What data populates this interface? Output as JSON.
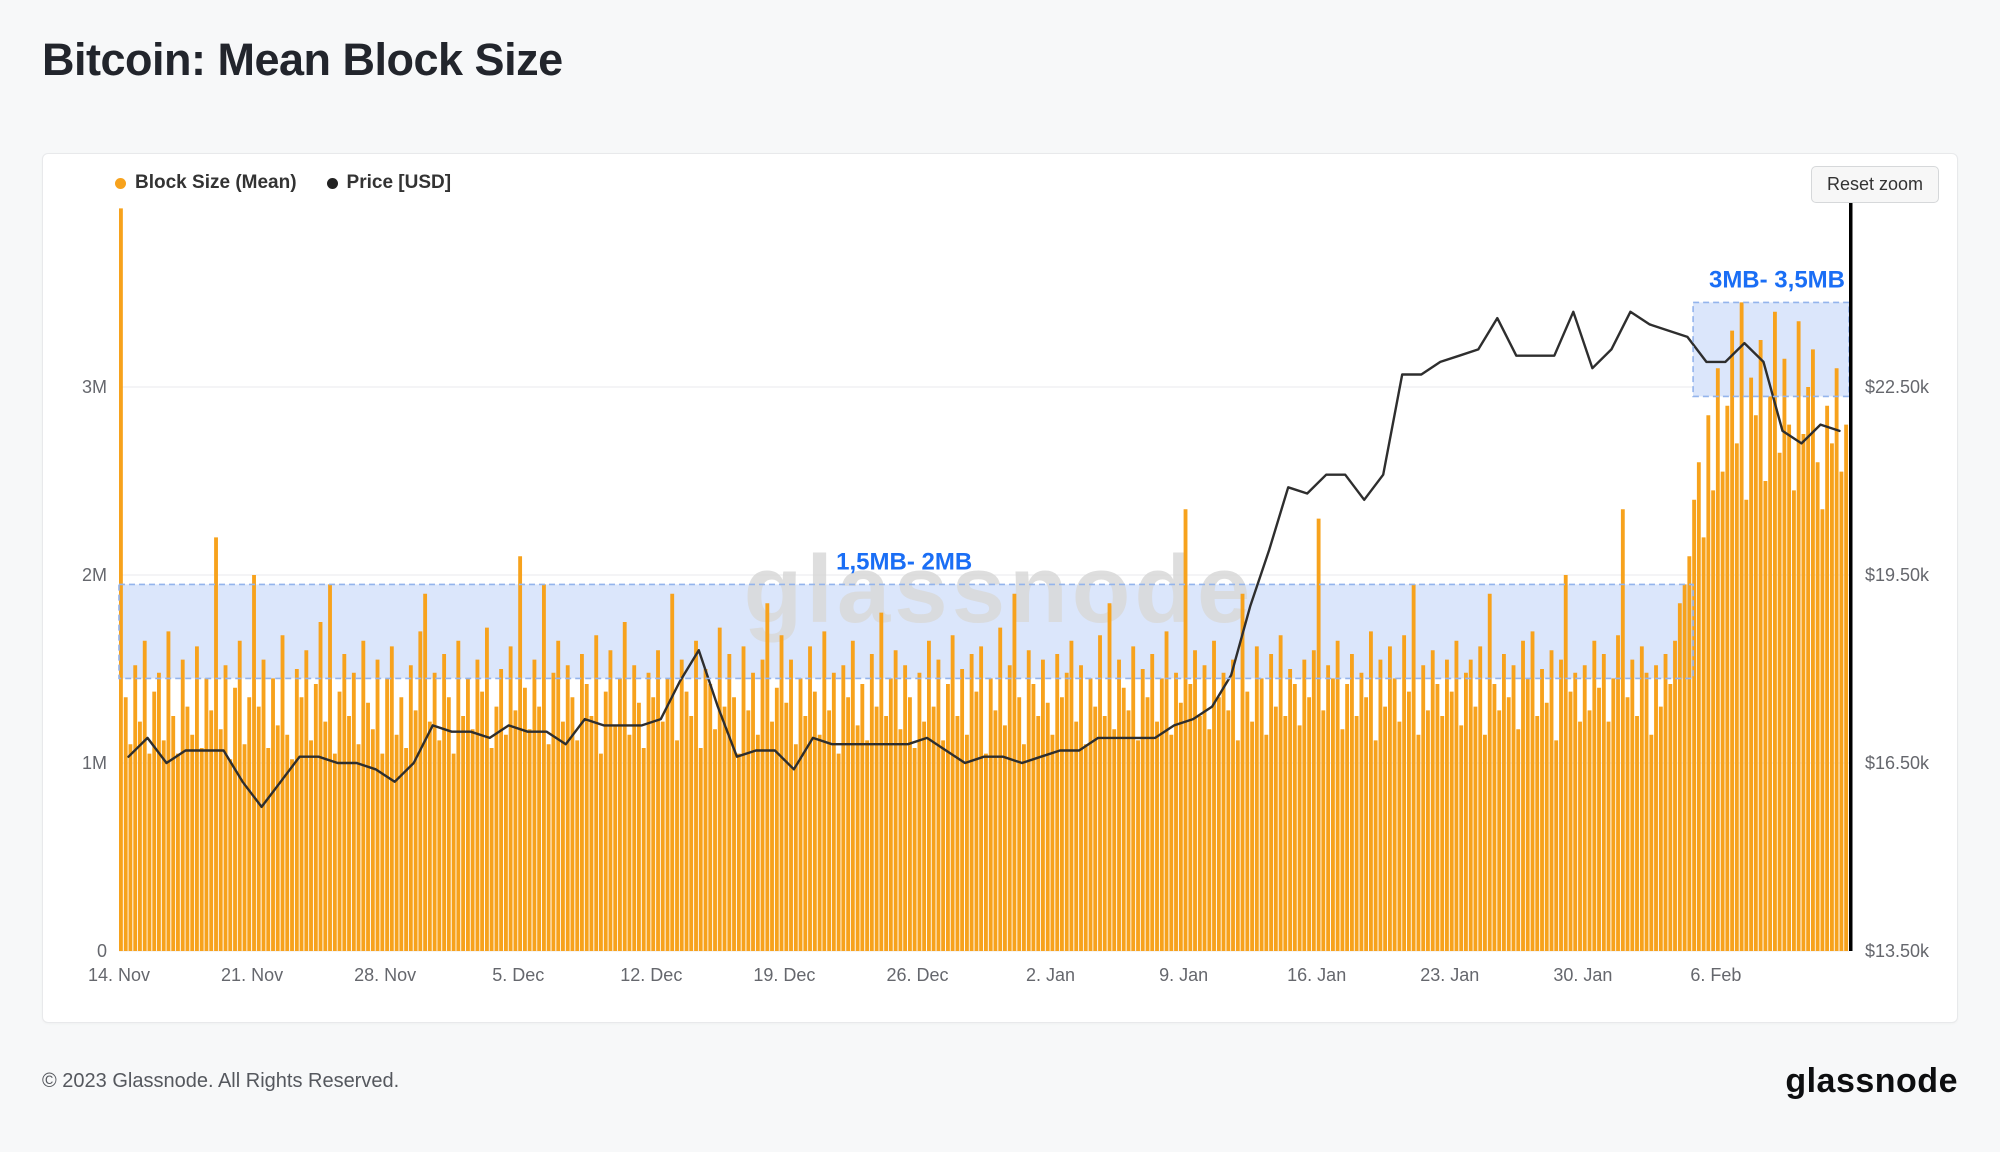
{
  "page": {
    "title": "Bitcoin: Mean Block Size",
    "watermark": "glassnode",
    "footer_copyright": "© 2023 Glassnode. All Rights Reserved.",
    "footer_brand": "glassnode"
  },
  "toolbar": {
    "reset_zoom_label": "Reset zoom"
  },
  "legend": [
    {
      "label": "Block Size (Mean)",
      "color": "#F7A21C"
    },
    {
      "label": "Price [USD]",
      "color": "#222222"
    }
  ],
  "colors": {
    "bar": "#F7A21C",
    "price": "#2e2e2e",
    "region_fill": "#dbe6fb",
    "region_border": "#93b4ec",
    "annotation_text": "#1a6ef5",
    "watermark": "#d8d8d8",
    "grid": "#e9eaec",
    "axis_text": "#65676d"
  },
  "chart_data": {
    "type": "bar",
    "title": "Bitcoin: Mean Block Size",
    "subtitle": "",
    "legend_position": "top-left",
    "grid": true,
    "days_total": 91,
    "x_tick_labels": [
      "14. Nov",
      "21. Nov",
      "28. Nov",
      "5. Dec",
      "12. Dec",
      "19. Dec",
      "26. Dec",
      "2. Jan",
      "9. Jan",
      "16. Jan",
      "23. Jan",
      "30. Jan",
      "6. Feb"
    ],
    "x_tick_days": [
      0,
      7,
      14,
      21,
      28,
      35,
      42,
      49,
      56,
      63,
      70,
      77,
      84
    ],
    "left_axis": {
      "unit": "MB (mean block size)",
      "max": 3.96,
      "ticks": [
        {
          "v": 0,
          "label": "0"
        },
        {
          "v": 1,
          "label": "1M"
        },
        {
          "v": 2,
          "label": "2M"
        },
        {
          "v": 3,
          "label": "3M"
        }
      ]
    },
    "right_axis": {
      "unit": "USD (thousands)",
      "min": 13.5,
      "step": 3,
      "ticks": [
        {
          "v": 13.5,
          "label": "$13.50k"
        },
        {
          "v": 16.5,
          "label": "$16.50k"
        },
        {
          "v": 19.5,
          "label": "$19.50k"
        },
        {
          "v": 22.5,
          "label": "$22.50k"
        }
      ]
    },
    "series": [
      {
        "name": "Block Size (Mean)",
        "type": "bar",
        "unit": "MB",
        "samples_per_day": 4,
        "values": [
          3.95,
          1.35,
          1.1,
          1.52,
          1.22,
          1.65,
          1.05,
          1.38,
          1.48,
          1.12,
          1.7,
          1.25,
          1.05,
          1.55,
          1.3,
          1.15,
          1.62,
          1.08,
          1.45,
          1.28,
          2.2,
          1.18,
          1.52,
          1.02,
          1.4,
          1.65,
          1.1,
          1.35,
          2.0,
          1.3,
          1.55,
          1.08,
          1.45,
          1.2,
          1.68,
          1.15,
          1.02,
          1.5,
          1.35,
          1.6,
          1.12,
          1.42,
          1.75,
          1.22,
          1.95,
          1.05,
          1.38,
          1.58,
          1.25,
          1.48,
          1.1,
          1.65,
          1.32,
          1.18,
          1.55,
          1.05,
          1.45,
          1.62,
          1.15,
          1.35,
          1.08,
          1.52,
          1.28,
          1.7,
          1.9,
          1.22,
          1.48,
          1.12,
          1.58,
          1.35,
          1.05,
          1.65,
          1.25,
          1.45,
          1.18,
          1.55,
          1.38,
          1.72,
          1.08,
          1.3,
          1.5,
          1.15,
          1.62,
          1.28,
          2.1,
          1.4,
          1.18,
          1.55,
          1.3,
          1.95,
          1.1,
          1.48,
          1.65,
          1.22,
          1.52,
          1.35,
          1.12,
          1.58,
          1.42,
          1.25,
          1.68,
          1.05,
          1.38,
          1.6,
          1.2,
          1.45,
          1.75,
          1.15,
          1.52,
          1.32,
          1.08,
          1.48,
          1.35,
          1.6,
          1.22,
          1.45,
          1.9,
          1.12,
          1.55,
          1.38,
          1.25,
          1.65,
          1.08,
          1.5,
          1.42,
          1.18,
          1.72,
          1.3,
          1.58,
          1.35,
          1.05,
          1.62,
          1.28,
          1.48,
          1.15,
          1.55,
          1.85,
          1.22,
          1.4,
          1.68,
          1.32,
          1.55,
          1.1,
          1.45,
          1.25,
          1.62,
          1.38,
          1.15,
          1.7,
          1.28,
          1.48,
          1.05,
          1.52,
          1.35,
          1.65,
          1.2,
          1.42,
          1.12,
          1.58,
          1.3,
          1.8,
          1.25,
          1.45,
          1.6,
          1.18,
          1.52,
          1.35,
          1.08,
          1.48,
          1.22,
          1.65,
          1.3,
          1.55,
          1.12,
          1.42,
          1.68,
          1.25,
          1.5,
          1.15,
          1.58,
          1.38,
          1.62,
          1.05,
          1.45,
          1.28,
          1.72,
          1.2,
          1.52,
          1.9,
          1.35,
          1.1,
          1.6,
          1.42,
          1.25,
          1.55,
          1.32,
          1.15,
          1.58,
          1.35,
          1.48,
          1.65,
          1.22,
          1.52,
          1.1,
          1.45,
          1.3,
          1.68,
          1.25,
          1.85,
          1.18,
          1.55,
          1.4,
          1.28,
          1.62,
          1.12,
          1.5,
          1.35,
          1.58,
          1.22,
          1.45,
          1.7,
          1.15,
          1.48,
          1.32,
          2.35,
          1.42,
          1.6,
          1.25,
          1.52,
          1.18,
          1.65,
          1.35,
          1.48,
          1.28,
          1.55,
          1.12,
          1.9,
          1.38,
          1.22,
          1.62,
          1.45,
          1.15,
          1.58,
          1.3,
          1.68,
          1.25,
          1.5,
          1.42,
          1.2,
          1.55,
          1.35,
          1.6,
          2.3,
          1.28,
          1.52,
          1.45,
          1.65,
          1.18,
          1.42,
          1.58,
          1.25,
          1.48,
          1.35,
          1.7,
          1.12,
          1.55,
          1.3,
          1.62,
          1.45,
          1.22,
          1.68,
          1.38,
          1.95,
          1.15,
          1.52,
          1.28,
          1.6,
          1.42,
          1.25,
          1.55,
          1.38,
          1.65,
          1.2,
          1.48,
          1.55,
          1.3,
          1.62,
          1.15,
          1.9,
          1.42,
          1.28,
          1.58,
          1.35,
          1.52,
          1.18,
          1.65,
          1.45,
          1.7,
          1.25,
          1.5,
          1.32,
          1.6,
          1.12,
          1.55,
          2.0,
          1.38,
          1.48,
          1.22,
          1.52,
          1.28,
          1.65,
          1.4,
          1.58,
          1.22,
          1.45,
          1.68,
          2.35,
          1.35,
          1.55,
          1.25,
          1.62,
          1.48,
          1.15,
          1.52,
          1.3,
          1.58,
          1.42,
          1.65,
          1.85,
          1.95,
          2.1,
          2.4,
          2.6,
          2.2,
          2.85,
          2.45,
          3.1,
          2.55,
          2.9,
          3.3,
          2.7,
          3.45,
          2.4,
          3.05,
          2.85,
          3.25,
          2.5,
          2.95,
          3.4,
          2.65,
          3.15,
          2.8,
          2.45,
          3.35,
          2.75,
          3.0,
          3.2,
          2.6,
          2.35,
          2.9,
          2.7,
          3.1,
          2.55,
          2.8
        ]
      },
      {
        "name": "Price [USD]",
        "type": "line",
        "unit": "USD_k",
        "samples_per_day": 1,
        "values": [
          16.6,
          16.9,
          16.5,
          16.7,
          16.7,
          16.7,
          16.2,
          15.8,
          16.2,
          16.6,
          16.6,
          16.5,
          16.5,
          16.4,
          16.2,
          16.5,
          17.1,
          17.0,
          17.0,
          16.9,
          17.1,
          17.0,
          17.0,
          16.8,
          17.2,
          17.1,
          17.1,
          17.1,
          17.2,
          17.8,
          18.3,
          17.4,
          16.6,
          16.7,
          16.7,
          16.4,
          16.9,
          16.8,
          16.8,
          16.8,
          16.8,
          16.8,
          16.9,
          16.7,
          16.5,
          16.6,
          16.6,
          16.5,
          16.6,
          16.7,
          16.7,
          16.9,
          16.9,
          16.9,
          16.9,
          17.1,
          17.2,
          17.4,
          17.9,
          19.0,
          19.9,
          20.9,
          20.8,
          21.1,
          21.1,
          20.7,
          21.1,
          22.7,
          22.7,
          22.9,
          23.0,
          23.1,
          23.6,
          23.0,
          23.0,
          23.0,
          23.7,
          22.8,
          23.1,
          23.7,
          23.5,
          23.4,
          23.3,
          22.9,
          22.9,
          23.2,
          22.9,
          21.8,
          21.6,
          21.9,
          21.8
        ]
      }
    ],
    "annotations": [
      {
        "label": "1,5MB- 2MB",
        "from_day": 0,
        "to_day": 82.8,
        "y1": 1.45,
        "y2": 1.95,
        "label_day": 41.3,
        "label_align": "middle"
      },
      {
        "label": "3MB- 3,5MB",
        "from_day": 82.8,
        "to_day": 91,
        "y1": 2.95,
        "y2": 3.45,
        "label_day": 91,
        "label_align": "end"
      }
    ]
  }
}
